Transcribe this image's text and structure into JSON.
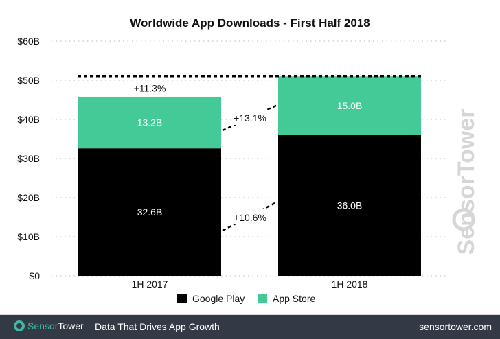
{
  "chart_data": {
    "type": "bar",
    "stacked": true,
    "title": "Worldwide App Downloads - First Half 2018",
    "categories": [
      "1H 2017",
      "1H 2018"
    ],
    "series": [
      {
        "name": "Google Play",
        "values": [
          32.6,
          36.0
        ],
        "labels": [
          "32.6B",
          "36.0B"
        ],
        "color": "#000000"
      },
      {
        "name": "App Store",
        "values": [
          13.2,
          15.0
        ],
        "labels": [
          "13.2B",
          "15.0B"
        ],
        "color": "#43ca96"
      }
    ],
    "ylim": [
      0,
      60
    ],
    "yticks": [
      0,
      10,
      20,
      30,
      40,
      50,
      60
    ],
    "ytick_labels": [
      "$0",
      "$10B",
      "$20B",
      "$30B",
      "$40B",
      "$50B",
      "$60B"
    ],
    "grid": "horizontal-dotted",
    "legend": "bottom",
    "annotations": {
      "total_growth": "+11.3%",
      "app_store_growth": "+13.1%",
      "google_play_growth": "+10.6%"
    }
  },
  "watermark": "SensorTower",
  "footer": {
    "brand_a": "Sensor",
    "brand_b": "Tower",
    "tagline": "Data That Drives App Growth",
    "site": "sensortower.com"
  }
}
